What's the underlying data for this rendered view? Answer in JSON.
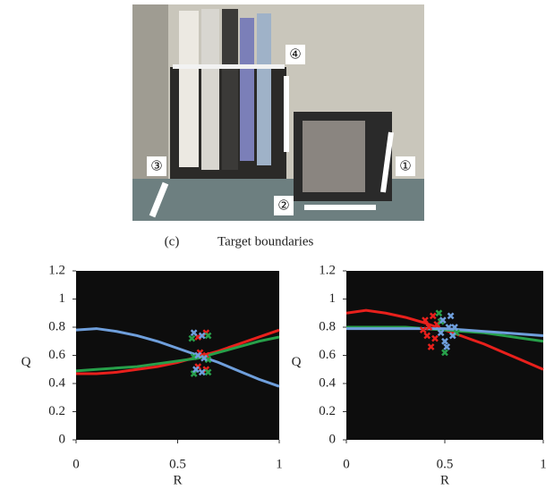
{
  "figure": {
    "photo_labels": [
      "①",
      "②",
      "③",
      "④"
    ],
    "caption_label": "(c)",
    "caption_text": "Target boundaries"
  },
  "chart_data": [
    {
      "type": "line",
      "ylabel": "Q",
      "xlabel": "R",
      "xlim": [
        0,
        1
      ],
      "ylim": [
        0,
        1.2
      ],
      "xticks": [
        0,
        0.5,
        1
      ],
      "yticks": [
        0,
        0.2,
        0.4,
        0.6,
        0.8,
        1,
        1.2
      ],
      "x": [
        0,
        0.1,
        0.2,
        0.3,
        0.4,
        0.5,
        0.6,
        0.7,
        0.8,
        0.9,
        1
      ],
      "series": [
        {
          "color": "#6f9fdc",
          "values": [
            0.78,
            0.79,
            0.77,
            0.74,
            0.7,
            0.65,
            0.6,
            0.55,
            0.49,
            0.43,
            0.38
          ]
        },
        {
          "color": "#e8201c",
          "values": [
            0.47,
            0.47,
            0.48,
            0.5,
            0.52,
            0.55,
            0.59,
            0.63,
            0.68,
            0.73,
            0.78
          ]
        },
        {
          "color": "#27a04a",
          "values": [
            0.49,
            0.5,
            0.51,
            0.52,
            0.54,
            0.56,
            0.58,
            0.62,
            0.66,
            0.7,
            0.73
          ]
        }
      ],
      "scatter": [
        {
          "color": "#e8201c",
          "x": [
            0.64,
            0.6,
            0.64,
            0.61,
            0.64,
            0.6
          ],
          "values": [
            0.76,
            0.73,
            0.6,
            0.62,
            0.5,
            0.52
          ]
        },
        {
          "color": "#27a04a",
          "x": [
            0.65,
            0.57,
            0.65,
            0.58,
            0.65,
            0.58
          ],
          "values": [
            0.74,
            0.72,
            0.57,
            0.59,
            0.48,
            0.47
          ]
        },
        {
          "color": "#6f9fdc",
          "x": [
            0.58,
            0.62,
            0.6,
            0.63,
            0.59,
            0.62
          ],
          "values": [
            0.76,
            0.74,
            0.6,
            0.58,
            0.5,
            0.48
          ]
        }
      ]
    },
    {
      "type": "line",
      "ylabel": "Q",
      "xlabel": "R",
      "xlim": [
        0,
        1
      ],
      "ylim": [
        0,
        1.2
      ],
      "xticks": [
        0,
        0.5,
        1
      ],
      "yticks": [
        0,
        0.2,
        0.4,
        0.6,
        0.8,
        1,
        1.2
      ],
      "x": [
        0,
        0.1,
        0.2,
        0.3,
        0.4,
        0.5,
        0.6,
        0.7,
        0.8,
        0.9,
        1
      ],
      "series": [
        {
          "color": "#e8201c",
          "values": [
            0.9,
            0.92,
            0.9,
            0.87,
            0.83,
            0.78,
            0.73,
            0.68,
            0.62,
            0.56,
            0.5
          ]
        },
        {
          "color": "#27a04a",
          "values": [
            0.8,
            0.8,
            0.8,
            0.8,
            0.79,
            0.78,
            0.77,
            0.76,
            0.74,
            0.72,
            0.7
          ]
        },
        {
          "color": "#6f9fdc",
          "values": [
            0.79,
            0.79,
            0.79,
            0.79,
            0.79,
            0.79,
            0.78,
            0.77,
            0.76,
            0.75,
            0.74
          ]
        }
      ],
      "scatter": [
        {
          "color": "#e8201c",
          "x": [
            0.4,
            0.42,
            0.44,
            0.41,
            0.45,
            0.43,
            0.46,
            0.39
          ],
          "values": [
            0.85,
            0.8,
            0.88,
            0.74,
            0.72,
            0.66,
            0.82,
            0.78
          ]
        },
        {
          "color": "#27a04a",
          "x": [
            0.47,
            0.5,
            0.56,
            0.48
          ],
          "values": [
            0.9,
            0.62,
            0.76,
            0.84
          ]
        },
        {
          "color": "#6f9fdc",
          "x": [
            0.49,
            0.52,
            0.54,
            0.5,
            0.53,
            0.48,
            0.55,
            0.51
          ],
          "values": [
            0.85,
            0.8,
            0.74,
            0.7,
            0.88,
            0.76,
            0.8,
            0.66
          ]
        }
      ]
    }
  ]
}
